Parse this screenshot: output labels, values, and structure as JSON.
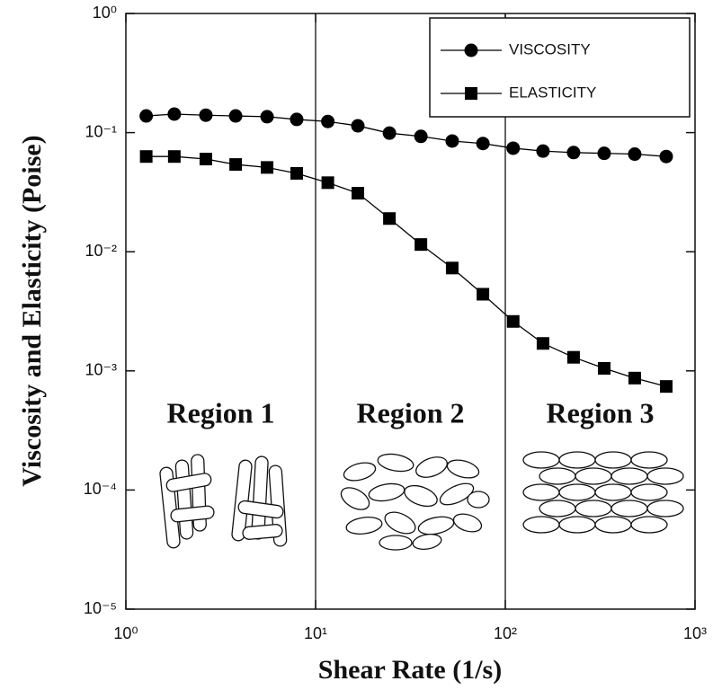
{
  "chart_data": {
    "type": "line",
    "xlabel": "Shear Rate (1/s)",
    "ylabel": "Viscosity and Elasticity (Poise)",
    "xscale": "log",
    "yscale": "log",
    "xlim": [
      1,
      1000
    ],
    "ylim": [
      1e-05,
      1
    ],
    "xticks": [
      {
        "value": 1,
        "label": "10⁰"
      },
      {
        "value": 10,
        "label": "10¹"
      },
      {
        "value": 100,
        "label": "10²"
      },
      {
        "value": 1000,
        "label": "10³"
      }
    ],
    "yticks": [
      {
        "value": 1e-05,
        "label": "10⁻⁵"
      },
      {
        "value": 0.0001,
        "label": "10⁻⁴"
      },
      {
        "value": 0.001,
        "label": "10⁻³"
      },
      {
        "value": 0.01,
        "label": "10⁻²"
      },
      {
        "value": 0.1,
        "label": "10⁻¹"
      },
      {
        "value": 1,
        "label": "10⁰"
      }
    ],
    "vlines": [
      10,
      100
    ],
    "annotations": [
      "Region 1",
      "Region 2",
      "Region 3"
    ],
    "legend": "upper right",
    "x": [
      1.28,
      1.8,
      2.64,
      3.79,
      5.55,
      7.95,
      11.6,
      16.7,
      24.5,
      35.9,
      52.5,
      76.2,
      110,
      158,
      229,
      332,
      481,
      705
    ],
    "series": [
      {
        "name": "VISCOSITY",
        "color": "#000000",
        "marker": "circle",
        "values": [
          0.138,
          0.143,
          0.14,
          0.138,
          0.136,
          0.129,
          0.124,
          0.114,
          0.099,
          0.093,
          0.085,
          0.081,
          0.074,
          0.07,
          0.068,
          0.067,
          0.066,
          0.063
        ]
      },
      {
        "name": "ELASTICITY",
        "color": "#000000",
        "marker": "square",
        "values": [
          0.063,
          0.063,
          0.06,
          0.054,
          0.051,
          0.0455,
          0.038,
          0.031,
          0.019,
          0.0115,
          0.0073,
          0.0044,
          0.0026,
          0.0017,
          0.0013,
          0.00105,
          0.00087,
          0.00074
        ]
      }
    ]
  }
}
